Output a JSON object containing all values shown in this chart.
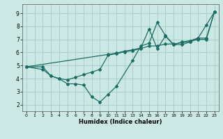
{
  "xlabel": "Humidex (Indice chaleur)",
  "xlim": [
    -0.5,
    23.5
  ],
  "ylim": [
    1.5,
    9.7
  ],
  "xticks": [
    0,
    1,
    2,
    3,
    4,
    5,
    6,
    7,
    8,
    9,
    10,
    11,
    12,
    13,
    14,
    15,
    16,
    17,
    18,
    19,
    20,
    21,
    22,
    23
  ],
  "yticks": [
    2,
    3,
    4,
    5,
    6,
    7,
    8,
    9
  ],
  "bg_color": "#cce8e4",
  "grid_color": "#aacfcb",
  "line_color": "#1a6e65",
  "lines": [
    {
      "x": [
        0,
        2,
        3,
        4,
        5,
        6,
        7,
        8,
        9,
        10,
        11,
        13,
        14,
        15,
        16,
        17,
        18,
        19,
        20,
        21,
        22,
        23
      ],
      "y": [
        4.9,
        4.7,
        4.2,
        4.0,
        3.6,
        3.6,
        3.5,
        2.6,
        2.2,
        2.8,
        3.4,
        5.4,
        6.5,
        6.7,
        8.3,
        7.3,
        6.6,
        6.6,
        6.8,
        7.1,
        8.1,
        9.1
      ]
    },
    {
      "x": [
        0,
        2,
        3,
        4,
        5,
        6,
        7,
        8,
        9,
        10,
        11,
        12,
        13,
        14,
        15,
        16,
        17,
        18,
        19,
        20,
        21,
        22,
        23
      ],
      "y": [
        4.9,
        4.9,
        4.2,
        4.0,
        3.9,
        4.1,
        4.3,
        4.5,
        4.7,
        5.8,
        5.9,
        6.05,
        6.15,
        6.3,
        6.5,
        6.5,
        6.65,
        6.65,
        6.75,
        6.85,
        7.0,
        7.0,
        9.1
      ]
    },
    {
      "x": [
        0,
        10,
        11,
        12,
        13,
        14,
        15,
        16,
        17,
        18,
        19,
        20,
        21,
        22,
        23
      ],
      "y": [
        4.9,
        5.85,
        5.95,
        6.1,
        6.2,
        6.35,
        7.8,
        6.3,
        7.25,
        6.6,
        6.8,
        6.9,
        7.1,
        7.1,
        9.1
      ]
    }
  ]
}
